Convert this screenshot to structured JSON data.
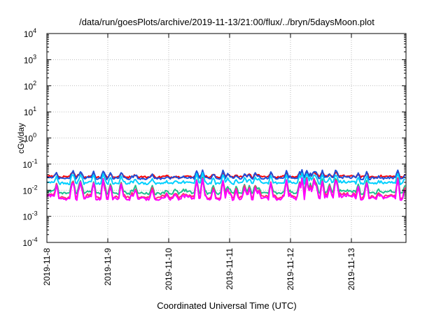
{
  "chart_data": {
    "type": "line",
    "title": "/data/run/goesPlots/archive/2019-11-13/21:00/flux/../bryn/5daysMoon.plot",
    "xlabel": "Coordinated Universal Time (UTC)",
    "ylabel": "cGy/day",
    "yscale": "log",
    "ylim_exp": [
      -4,
      4
    ],
    "y_ticks": [
      {
        "base": "10",
        "exp": "-4"
      },
      {
        "base": "10",
        "exp": "-3"
      },
      {
        "base": "10",
        "exp": "-2"
      },
      {
        "base": "10",
        "exp": "-1"
      },
      {
        "base": "10",
        "exp": "0"
      },
      {
        "base": "10",
        "exp": "1"
      },
      {
        "base": "10",
        "exp": "2"
      },
      {
        "base": "10",
        "exp": "3"
      },
      {
        "base": "10",
        "exp": "4"
      }
    ],
    "x_tick_labels": [
      "2019-11-8",
      "2019-11-9",
      "2019-11-10",
      "2019-11-11",
      "2019-11-12",
      "2019-11-13"
    ],
    "xlim_days": [
      0,
      5.88
    ],
    "grid": true,
    "series": [
      {
        "color": "#ff0000",
        "base": 0.032,
        "peak": 0.05
      },
      {
        "color": "#1f4fd8",
        "base": 0.028,
        "peak": 0.06
      },
      {
        "color": "#00d0ff",
        "base": 0.018,
        "peak": 0.045
      },
      {
        "color": "#20c090",
        "base": 0.0075,
        "peak": 0.03
      },
      {
        "color": "#ff3070",
        "base": 0.0052,
        "peak": 0.03
      },
      {
        "color": "#ff00ff",
        "base": 0.0045,
        "peak": 0.028
      }
    ]
  }
}
